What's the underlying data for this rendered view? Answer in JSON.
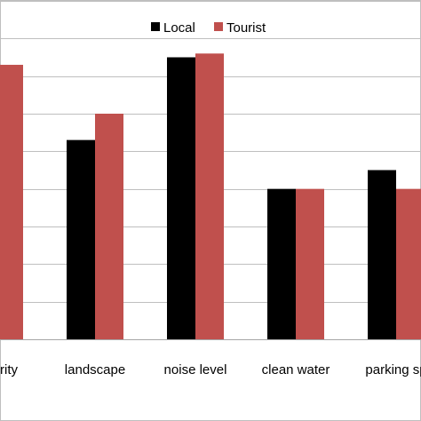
{
  "chart_data": {
    "type": "bar",
    "title": "",
    "xlabel": "",
    "ylabel": "",
    "categories": [
      "rity",
      "landscape",
      "noise level",
      "clean water",
      "parking sp"
    ],
    "series": [
      {
        "name": "Local",
        "color": "#000000",
        "values": [
          7.4,
          5.3,
          7.5,
          4.0,
          4.5
        ]
      },
      {
        "name": "Tourist",
        "color": "#c0504d",
        "values": [
          7.3,
          6.0,
          7.6,
          4.0,
          4.0
        ]
      }
    ],
    "ylim": [
      0,
      9
    ],
    "y_gridlines": [
      0,
      1,
      2,
      3,
      4,
      5,
      6,
      7,
      8,
      9
    ],
    "grid": true,
    "legend_position": "top",
    "y_tick_labels_visible": false
  }
}
